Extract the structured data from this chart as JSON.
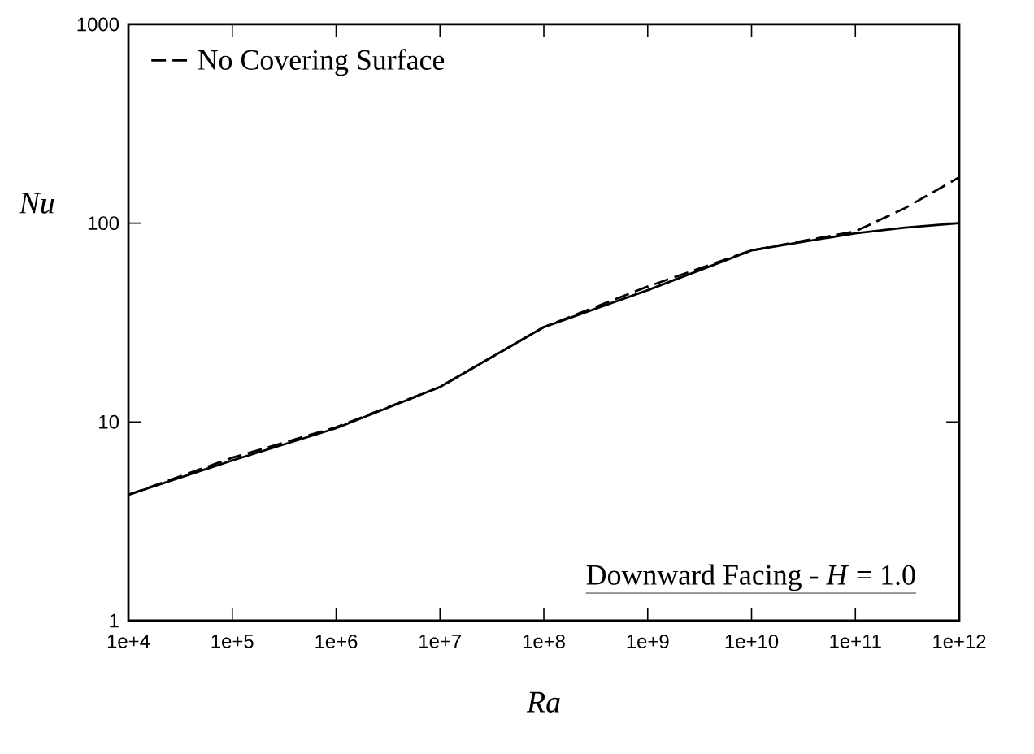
{
  "chart_data": {
    "type": "line",
    "xlabel": "Ra",
    "ylabel": "Nu",
    "log": "xy",
    "grid": false,
    "legend": "top left",
    "marker": "none",
    "xlim": [
      10000,
      1000000000000
    ],
    "ylim": [
      1,
      1000
    ],
    "xticks": [
      {
        "value": 10000,
        "label": "1e+4"
      },
      {
        "value": 100000,
        "label": "1e+5"
      },
      {
        "value": 1000000,
        "label": "1e+6"
      },
      {
        "value": 10000000,
        "label": "1e+7"
      },
      {
        "value": 100000000,
        "label": "1e+8"
      },
      {
        "value": 1000000000,
        "label": "1e+9"
      },
      {
        "value": 10000000000,
        "label": "1e+10"
      },
      {
        "value": 100000000000,
        "label": "1e+11"
      },
      {
        "value": 1000000000000,
        "label": "1e+12"
      }
    ],
    "yticks": [
      1,
      10,
      100,
      1000
    ],
    "x": [
      10000,
      100000,
      1000000,
      10000000,
      100000000,
      1000000000,
      10000000000,
      100000000000,
      300000000000,
      1000000000000
    ],
    "series": [
      {
        "color": "#000000",
        "line_style": "solid",
        "values": [
          4.3,
          6.4,
          9.3,
          15,
          30,
          46,
          73,
          89,
          95,
          100
        ]
      },
      {
        "name": "No Covering Surface",
        "color": "#000000",
        "line_style": "dashed",
        "values": [
          4.3,
          6.6,
          9.4,
          15,
          30,
          48,
          73,
          91,
          119,
          170
        ]
      }
    ],
    "annotations": [
      "Downward Facing - *H* = 1.0"
    ]
  }
}
